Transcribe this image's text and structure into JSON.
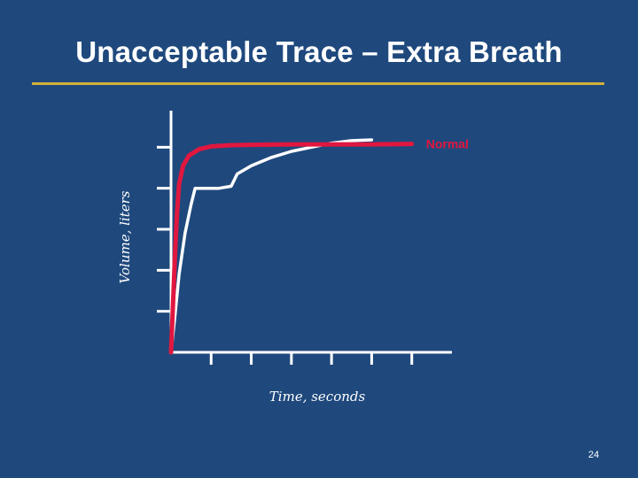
{
  "slide": {
    "title": "Unacceptable Trace – Extra Breath",
    "page_number": "24"
  },
  "colors": {
    "background": "#1f497d",
    "rule": "#d4b03a",
    "normal_trace": "#e0173f",
    "extra_breath_trace": "#ffffff",
    "axes": "#ffffff"
  },
  "chart_data": {
    "type": "line",
    "xlabel": "Time, seconds",
    "ylabel": "Volume, liters",
    "xlim": [
      0,
      7
    ],
    "ylim": [
      0,
      6
    ],
    "x_ticks": [
      1,
      2,
      3,
      4,
      5,
      6
    ],
    "y_ticks": [
      1,
      2,
      3,
      4,
      5
    ],
    "tick_labels_shown": false,
    "grid": false,
    "series": [
      {
        "name": "Normal",
        "color": "#e0173f",
        "points": [
          [
            0,
            0
          ],
          [
            0.05,
            1.2
          ],
          [
            0.1,
            2.4
          ],
          [
            0.15,
            3.4
          ],
          [
            0.2,
            4.1
          ],
          [
            0.3,
            4.55
          ],
          [
            0.45,
            4.8
          ],
          [
            0.7,
            4.95
          ],
          [
            1.0,
            5.02
          ],
          [
            1.5,
            5.05
          ],
          [
            2.0,
            5.06
          ],
          [
            3.0,
            5.07
          ],
          [
            4.0,
            5.07
          ],
          [
            5.0,
            5.07
          ],
          [
            6.0,
            5.08
          ]
        ]
      },
      {
        "name": "",
        "color": "#ffffff",
        "points": [
          [
            0,
            0
          ],
          [
            0.1,
            0.9
          ],
          [
            0.2,
            1.9
          ],
          [
            0.35,
            2.9
          ],
          [
            0.5,
            3.6
          ],
          [
            0.6,
            4.0
          ],
          [
            0.85,
            4.0
          ],
          [
            1.2,
            4.0
          ],
          [
            1.5,
            4.05
          ],
          [
            1.65,
            4.35
          ],
          [
            2.0,
            4.55
          ],
          [
            2.5,
            4.75
          ],
          [
            3.0,
            4.9
          ],
          [
            3.5,
            5.0
          ],
          [
            4.0,
            5.1
          ],
          [
            4.5,
            5.16
          ],
          [
            5.0,
            5.18
          ]
        ]
      }
    ]
  }
}
